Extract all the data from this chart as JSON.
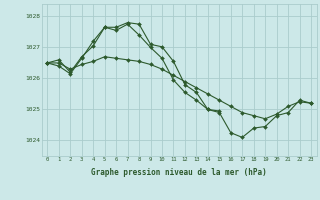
{
  "xlabel": "Graphe pression niveau de la mer (hPa)",
  "background_color": "#cce8e8",
  "grid_color": "#aacccc",
  "line_color": "#2d5a2d",
  "xlim": [
    -0.5,
    23.5
  ],
  "ylim": [
    1023.5,
    1028.4
  ],
  "yticks": [
    1024,
    1025,
    1026,
    1027,
    1028
  ],
  "xticks": [
    0,
    1,
    2,
    3,
    4,
    5,
    6,
    7,
    8,
    9,
    10,
    11,
    12,
    13,
    14,
    15,
    16,
    17,
    18,
    19,
    20,
    21,
    22,
    23
  ],
  "xtick_labels": [
    "0",
    "1",
    "2",
    "3",
    "4",
    "5",
    "6",
    "7",
    "8",
    "9",
    "10",
    "11",
    "12",
    "13",
    "14",
    "15",
    "16",
    "17",
    "18",
    "19",
    "20",
    "21",
    "22",
    "23"
  ],
  "series": [
    {
      "x": [
        0,
        1,
        2,
        3,
        4,
        5,
        6,
        7,
        8,
        9,
        10,
        11,
        12,
        13,
        14,
        15
      ],
      "y": [
        1026.5,
        1026.6,
        1026.2,
        1026.7,
        1027.05,
        1027.65,
        1027.65,
        1027.8,
        1027.75,
        1027.1,
        1027.02,
        1026.55,
        1025.8,
        1025.55,
        1025.0,
        1024.95
      ]
    },
    {
      "x": [
        0,
        1,
        2,
        3,
        4,
        5,
        6,
        7,
        8,
        9,
        10,
        11,
        12,
        13,
        14,
        15,
        16,
        17,
        18,
        19,
        20,
        21,
        22,
        23
      ],
      "y": [
        1026.5,
        1026.5,
        1026.3,
        1026.45,
        1026.55,
        1026.7,
        1026.65,
        1026.6,
        1026.55,
        1026.45,
        1026.3,
        1026.1,
        1025.9,
        1025.7,
        1025.5,
        1025.3,
        1025.1,
        1024.9,
        1024.8,
        1024.7,
        1024.85,
        1025.1,
        1025.25,
        1025.2
      ]
    },
    {
      "x": [
        0,
        1,
        2,
        3,
        4,
        5,
        6,
        7,
        8,
        9,
        10,
        11,
        12,
        13,
        14,
        15,
        16,
        17,
        18,
        19,
        20,
        21,
        22,
        23
      ],
      "y": [
        1026.5,
        1026.4,
        1026.15,
        1026.65,
        1027.2,
        1027.65,
        1027.55,
        1027.75,
        1027.4,
        1027.0,
        1026.65,
        1025.95,
        1025.55,
        1025.3,
        1025.0,
        1024.9,
        1024.25,
        1024.1,
        1024.4,
        1024.45,
        1024.8,
        1024.9,
        1025.3,
        1025.2
      ]
    }
  ]
}
